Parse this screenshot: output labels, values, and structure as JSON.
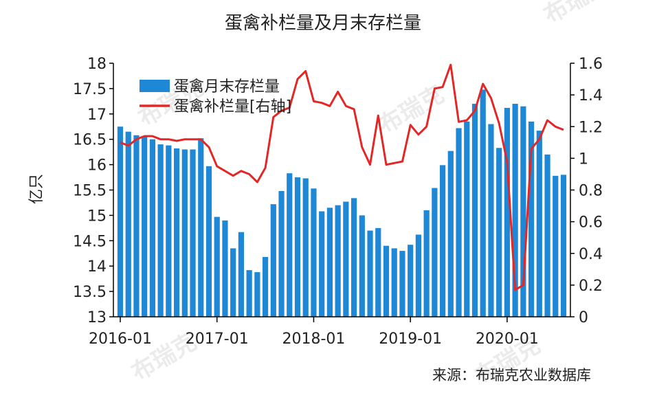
{
  "chart_data": {
    "type": "bar+line",
    "title": "蛋禽补栏量及月末存栏量",
    "ylabel_left": "亿只",
    "source": "来源：布瑞克农业数据库",
    "watermark_text": "布瑞克",
    "x_tick_labels": [
      "2016-01",
      "2017-01",
      "2018-01",
      "2019-01",
      "2020-01"
    ],
    "x_tick_indices": [
      0,
      12,
      24,
      36,
      48
    ],
    "y_left": {
      "min": 13,
      "max": 18,
      "step": 0.5,
      "ticks": [
        "13",
        "13.5",
        "14",
        "14.5",
        "15",
        "15.5",
        "16",
        "16.5",
        "17",
        "17.5",
        "18"
      ]
    },
    "y_right": {
      "min": 0,
      "max": 1.6,
      "step": 0.2,
      "ticks": [
        "0",
        "0.2",
        "0.4",
        "0.6",
        "0.8",
        "1",
        "1.2",
        "1.4",
        "1.6"
      ]
    },
    "grid": false,
    "legend_position": "top-left",
    "series": [
      {
        "name": "蛋禽月末存栏量",
        "kind": "bar",
        "axis": "left",
        "color": "#1f88d6",
        "values": [
          16.75,
          16.65,
          16.58,
          16.55,
          16.5,
          16.4,
          16.38,
          16.32,
          16.3,
          16.3,
          16.52,
          15.97,
          14.97,
          14.9,
          14.35,
          14.67,
          13.92,
          13.88,
          14.18,
          15.22,
          15.48,
          15.83,
          15.75,
          15.73,
          15.53,
          15.08,
          15.15,
          15.2,
          15.27,
          15.34,
          15.0,
          14.7,
          14.75,
          14.4,
          14.35,
          14.3,
          14.42,
          14.62,
          15.1,
          15.54,
          15.99,
          16.27,
          16.72,
          16.85,
          17.2,
          17.48,
          16.8,
          16.33,
          17.12,
          17.2,
          17.15,
          16.85,
          16.67,
          16.2,
          15.78,
          15.8
        ]
      },
      {
        "name": "蛋禽补栏量[右轴]",
        "kind": "line",
        "axis": "right",
        "color": "#e32626",
        "values": [
          1.1,
          1.08,
          1.12,
          1.14,
          1.14,
          1.12,
          1.12,
          1.11,
          1.12,
          1.12,
          1.12,
          1.07,
          0.95,
          0.92,
          0.89,
          0.92,
          0.9,
          0.85,
          0.94,
          1.26,
          1.3,
          1.32,
          1.5,
          1.55,
          1.36,
          1.35,
          1.33,
          1.42,
          1.33,
          1.31,
          1.07,
          0.96,
          1.27,
          0.96,
          0.97,
          0.98,
          1.21,
          1.15,
          1.2,
          1.44,
          1.45,
          1.59,
          1.23,
          1.24,
          1.3,
          1.47,
          1.38,
          1.22,
          0.98,
          0.17,
          0.2,
          1.06,
          1.12,
          1.24,
          1.2,
          1.18
        ]
      }
    ]
  }
}
